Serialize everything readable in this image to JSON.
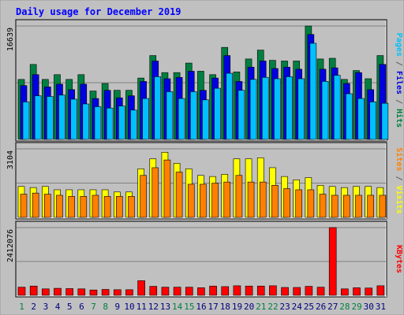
{
  "chart_data": {
    "type": "bar",
    "title": "Daily usage for December 2019",
    "categories": [
      "1",
      "2",
      "3",
      "4",
      "5",
      "6",
      "7",
      "8",
      "9",
      "10",
      "11",
      "12",
      "13",
      "14",
      "15",
      "16",
      "17",
      "18",
      "19",
      "20",
      "21",
      "22",
      "23",
      "24",
      "25",
      "26",
      "27",
      "28",
      "29",
      "30",
      "31"
    ],
    "weekend_days": [
      "1",
      "7",
      "8",
      "14",
      "15",
      "21",
      "22",
      "28",
      "29"
    ],
    "panels": [
      {
        "name": "hits_files_pages",
        "ymax_label": "16639",
        "ylim": [
          0,
          16639
        ],
        "right_label": [
          {
            "text": "Pages",
            "color": "#00c0ff"
          },
          {
            "text": " / ",
            "color": "#606060"
          },
          {
            "text": "Files",
            "color": "#0000e0"
          },
          {
            "text": " / ",
            "color": "#606060"
          },
          {
            "text": "Hits",
            "color": "#008040"
          }
        ],
        "series": [
          {
            "name": "Hits",
            "color": "#008040",
            "values": [
              8800,
              11000,
              8800,
              9500,
              8800,
              9500,
              7100,
              8200,
              7200,
              7200,
              9000,
              12300,
              9800,
              9800,
              11200,
              10000,
              9500,
              13500,
              9900,
              11800,
              13100,
              11600,
              11500,
              11500,
              16639,
              11800,
              11900,
              8800,
              10100,
              8900,
              12300
            ]
          },
          {
            "name": "Files",
            "color": "#0000e0",
            "values": [
              7900,
              9500,
              7700,
              8100,
              7300,
              8100,
              6000,
              7200,
              6100,
              6400,
              8500,
              11500,
              8900,
              9100,
              10000,
              7200,
              9000,
              12300,
              8500,
              10600,
              11500,
              10400,
              10600,
              10300,
              15400,
              10300,
              10500,
              8200,
              9800,
              7300,
              11000
            ]
          },
          {
            "name": "Pages",
            "color": "#00c0ff",
            "values": [
              5500,
              6400,
              6300,
              6500,
              5900,
              5200,
              4800,
              4600,
              4900,
              4300,
              6000,
              9200,
              7000,
              6000,
              7000,
              5800,
              7500,
              9700,
              7200,
              8800,
              9100,
              8900,
              9200,
              8900,
              14100,
              8500,
              9400,
              6700,
              6000,
              5500,
              5300
            ]
          }
        ]
      },
      {
        "name": "visits_sites",
        "ymax_label": "3104",
        "ylim": [
          0,
          3104
        ],
        "right_label": [
          {
            "text": "Sites",
            "color": "#ff8000"
          },
          {
            "text": " / ",
            "color": "#606060"
          },
          {
            "text": "Visits",
            "color": "#ffff00"
          }
        ],
        "series": [
          {
            "name": "Visits",
            "color": "#ffff00",
            "values": [
              1400,
              1350,
              1400,
              1250,
              1250,
              1250,
              1250,
              1250,
              1150,
              1150,
              2200,
              2650,
              2950,
              2450,
              2200,
              1900,
              1850,
              1950,
              2650,
              2650,
              2700,
              2250,
              1850,
              1700,
              1800,
              1450,
              1400,
              1350,
              1400,
              1400,
              1350
            ]
          },
          {
            "name": "Sites",
            "color": "#ff8000",
            "values": [
              1050,
              1100,
              1050,
              1000,
              950,
              950,
              1000,
              950,
              950,
              950,
              1900,
              2250,
              2600,
              2050,
              1500,
              1500,
              1550,
              1600,
              1900,
              1600,
              1600,
              1450,
              1300,
              1250,
              1250,
              1050,
              1000,
              1000,
              1000,
              1000,
              1000
            ]
          }
        ]
      },
      {
        "name": "kbytes",
        "ymax_label": "2412076",
        "ylim": [
          0,
          2412076
        ],
        "right_label": [
          {
            "text": "KBytes",
            "color": "#ff0000"
          }
        ],
        "series": [
          {
            "name": "KBytes",
            "color": "#ff0000",
            "values": [
              290000,
              330000,
              230000,
              250000,
              240000,
              230000,
              190000,
              210000,
              200000,
              200000,
              520000,
              320000,
              290000,
              290000,
              290000,
              270000,
              330000,
              310000,
              340000,
              330000,
              330000,
              340000,
              280000,
              280000,
              320000,
              290000,
              2412076,
              230000,
              270000,
              260000,
              340000
            ]
          }
        ]
      }
    ]
  },
  "colors": {
    "background": "#c0c0c0",
    "title": "#0000ff",
    "weekend_day": "#008040",
    "weekday_day": "#000080",
    "ymax": "#000000"
  }
}
